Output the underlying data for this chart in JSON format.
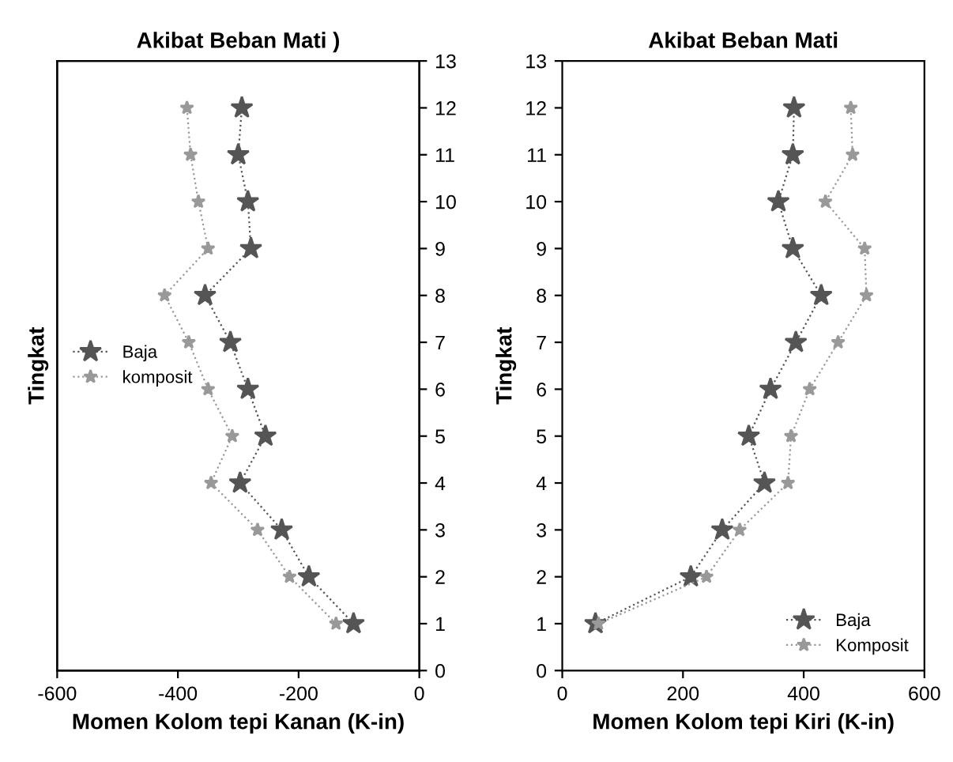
{
  "chart_data": [
    {
      "type": "line",
      "title": "Akibat Beban Mati )",
      "xlabel": "Momen Kolom tepi Kanan (K-in)",
      "ylabel": "Tingkat",
      "xlim": [
        -600,
        0
      ],
      "xticks": [
        -600,
        -400,
        -200,
        0
      ],
      "y2lim": [
        0,
        13
      ],
      "y2ticks": [
        0,
        1,
        2,
        3,
        4,
        5,
        6,
        7,
        8,
        9,
        10,
        11,
        12,
        13
      ],
      "marker": "star",
      "line_style": "dotted",
      "legend": "left",
      "grid": false,
      "series": [
        {
          "name": "Baja",
          "color": "#555555",
          "axis": "y2",
          "x": [
            -109,
            -183,
            -228,
            -297,
            -255,
            -284,
            -313,
            -355,
            -279,
            -284,
            -300,
            -294
          ],
          "values": [
            1,
            2,
            3,
            4,
            5,
            6,
            7,
            8,
            9,
            10,
            11,
            12
          ]
        },
        {
          "name": "komposit",
          "color": "#999999",
          "axis": "y2",
          "x": [
            -138,
            -215,
            -268,
            -345,
            -310,
            -350,
            -382,
            -422,
            -350,
            -366,
            -379,
            -385
          ],
          "values": [
            1,
            2,
            3,
            4,
            5,
            6,
            7,
            8,
            9,
            10,
            11,
            12
          ]
        }
      ]
    },
    {
      "type": "line",
      "title": "Akibat Beban Mati",
      "xlabel": "Momen Kolom tepi Kiri (K-in)",
      "ylabel": "Tingkat",
      "xlim": [
        0,
        600
      ],
      "xticks": [
        0,
        200,
        400,
        600
      ],
      "ylim": [
        0,
        13
      ],
      "yticks": [
        0,
        1,
        2,
        3,
        4,
        5,
        6,
        7,
        8,
        9,
        10,
        11,
        12,
        13
      ],
      "marker": "star",
      "line_style": "dotted",
      "legend": "bottom right",
      "grid": false,
      "series": [
        {
          "name": "Baja",
          "color": "#555555",
          "x": [
            55,
            213,
            265,
            335,
            309,
            345,
            387,
            429,
            382,
            358,
            382,
            384
          ],
          "values": [
            1,
            2,
            3,
            4,
            5,
            6,
            7,
            8,
            9,
            10,
            11,
            12
          ]
        },
        {
          "name": "Komposit",
          "color": "#999999",
          "x": [
            60,
            239,
            294,
            374,
            379,
            410,
            457,
            504,
            501,
            436,
            481,
            478
          ],
          "values": [
            1,
            2,
            3,
            4,
            5,
            6,
            7,
            8,
            9,
            10,
            11,
            12
          ]
        }
      ]
    }
  ]
}
